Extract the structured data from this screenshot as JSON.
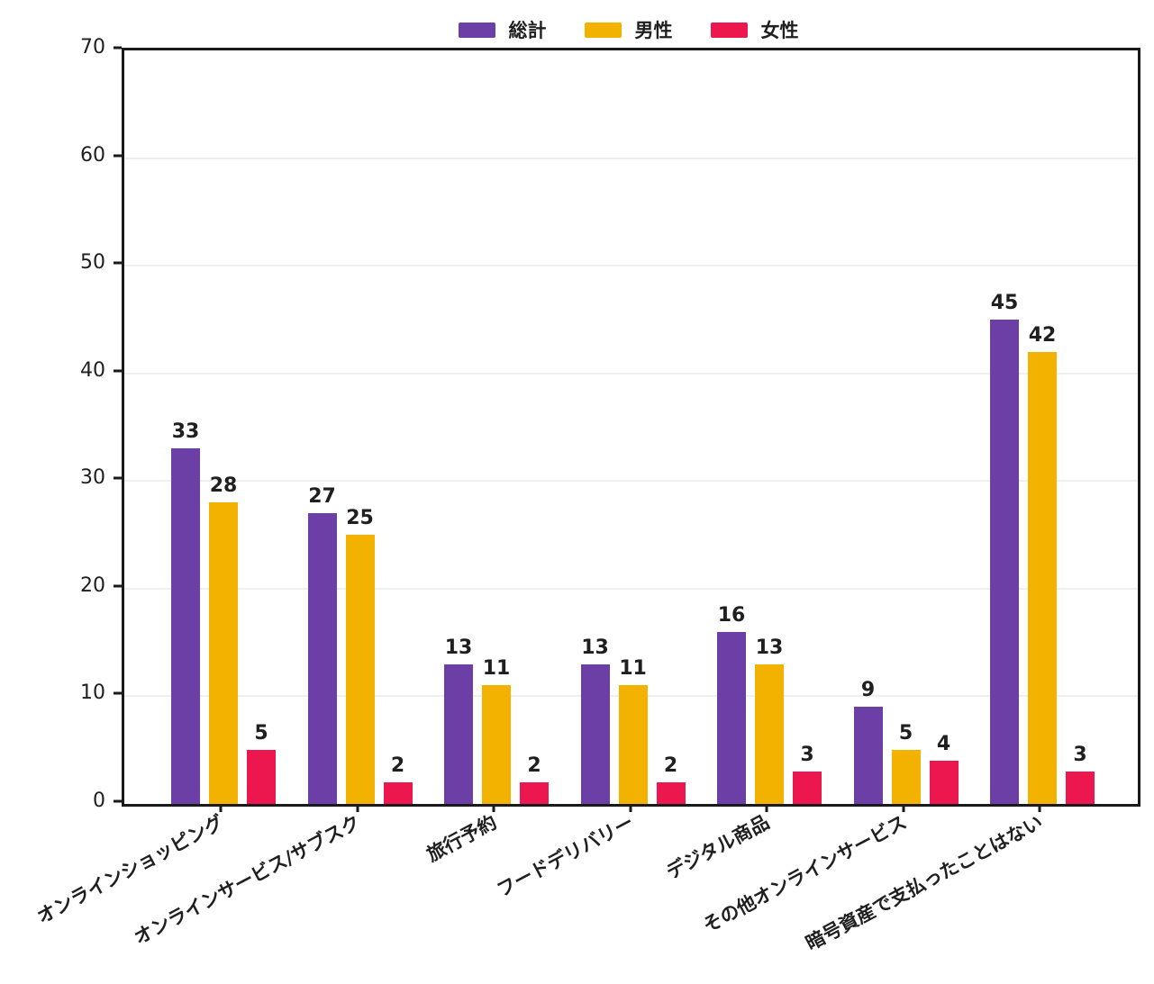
{
  "chart_data": {
    "type": "bar",
    "title": "",
    "xlabel": "",
    "ylabel": "",
    "categories": [
      "オンラインショッピング",
      "オンラインサービス/サブスク",
      "旅行予約",
      "フードデリバリー",
      "デジタル商品",
      "その他オンラインサービス",
      "暗号資産で支払ったことはない"
    ],
    "series": [
      {
        "name": "総計",
        "color": "#6B3FA6",
        "values": [
          33,
          27,
          13,
          13,
          16,
          9,
          45
        ]
      },
      {
        "name": "男性",
        "color": "#F3B200",
        "values": [
          28,
          25,
          11,
          11,
          13,
          5,
          42
        ]
      },
      {
        "name": "女性",
        "color": "#ED174F",
        "values": [
          5,
          2,
          2,
          2,
          3,
          4,
          3
        ]
      }
    ],
    "ylim": [
      0,
      70
    ],
    "yticks": [
      0,
      10,
      20,
      30,
      40,
      50,
      60,
      70
    ],
    "grid": true,
    "bar_value_labels": true,
    "legend_position": "top-center",
    "colors": {
      "frame": "#1a1a1a",
      "grid": "#efefef",
      "text": "#1f1f1f"
    }
  }
}
